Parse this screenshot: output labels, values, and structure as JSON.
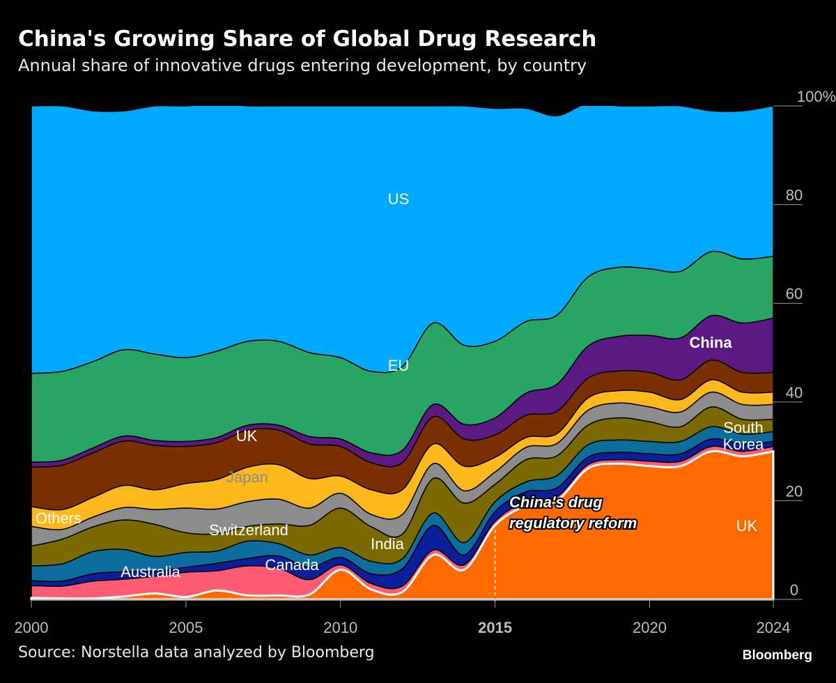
{
  "title": "China's Growing Share of Global Drug Research",
  "subtitle": "Annual share of innovative drugs entering development, by country",
  "source": "Source: Norstella data analyzed by Bloomberg",
  "brand": "Bloomberg",
  "chart_data": {
    "type": "area",
    "stacked": true,
    "normalized": true,
    "x": [
      2000,
      2001,
      2002,
      2003,
      2004,
      2005,
      2006,
      2007,
      2008,
      2009,
      2010,
      2011,
      2012,
      2013,
      2014,
      2015,
      2016,
      2017,
      2018,
      2019,
      2020,
      2021,
      2022,
      2023,
      2024
    ],
    "xticks": [
      {
        "value": 2000,
        "label": "2000",
        "bold": false
      },
      {
        "value": 2005,
        "label": "2005",
        "bold": false
      },
      {
        "value": 2010,
        "label": "2010",
        "bold": false
      },
      {
        "value": 2015,
        "label": "2015",
        "bold": true
      },
      {
        "value": 2020,
        "label": "2020",
        "bold": false
      },
      {
        "value": 2024,
        "label": "2024",
        "bold": false
      }
    ],
    "ylim": [
      0,
      100
    ],
    "yticks": [
      {
        "value": 0,
        "label": "0"
      },
      {
        "value": 20,
        "label": "20"
      },
      {
        "value": 40,
        "label": "40"
      },
      {
        "value": 60,
        "label": "60"
      },
      {
        "value": 80,
        "label": "80"
      },
      {
        "value": 100,
        "label": "100%"
      }
    ],
    "grid": false,
    "series": [
      {
        "name": "China",
        "color": "#ff6a00",
        "values": [
          0.3,
          0.2,
          0.2,
          0.6,
          1.2,
          0.5,
          1.8,
          0.8,
          0.8,
          1.0,
          6.0,
          2.0,
          1.5,
          9.0,
          6.0,
          15.0,
          19.0,
          20.0,
          26.5,
          27.5,
          27.0,
          27.0,
          30.0,
          29.0,
          30.0
        ]
      },
      {
        "name": "Australia",
        "color": "#ff5b74",
        "values": [
          2.5,
          2.5,
          3.5,
          3.5,
          3.5,
          5.0,
          4.0,
          6.0,
          5.5,
          3.0,
          1.0,
          1.2,
          1.2,
          1.0,
          1.0,
          0.8,
          0.8,
          0.8,
          0.8,
          0.8,
          1.0,
          1.0,
          1.0,
          1.0,
          1.0
        ]
      },
      {
        "name": "India",
        "color": "#0b1e9c",
        "values": [
          1.0,
          1.0,
          1.5,
          1.5,
          1.0,
          1.0,
          1.5,
          1.5,
          2.5,
          2.5,
          1.5,
          2.0,
          3.5,
          5.0,
          2.0,
          2.0,
          2.0,
          1.8,
          1.5,
          1.5,
          1.5,
          1.5,
          1.5,
          1.5,
          1.0
        ]
      },
      {
        "name": "Canada",
        "color": "#0d6e9e",
        "values": [
          3.0,
          3.5,
          4.5,
          4.5,
          3.0,
          3.0,
          2.5,
          3.5,
          2.5,
          2.5,
          2.0,
          2.5,
          2.0,
          2.5,
          2.5,
          2.0,
          2.0,
          2.5,
          2.5,
          2.5,
          2.5,
          2.5,
          2.5,
          2.0,
          2.0
        ]
      },
      {
        "name": "Switzerland",
        "color": "#7a6a00",
        "values": [
          4.0,
          5.0,
          5.0,
          6.0,
          6.5,
          4.0,
          3.5,
          3.0,
          4.0,
          6.0,
          8.0,
          7.0,
          5.0,
          7.0,
          8.0,
          3.5,
          4.5,
          4.0,
          4.0,
          4.5,
          4.0,
          3.0,
          4.0,
          3.0,
          2.5
        ]
      },
      {
        "name": "Others",
        "color": "#8c8c8c",
        "values": [
          4.0,
          2.0,
          2.0,
          2.5,
          3.0,
          5.0,
          5.0,
          5.0,
          5.0,
          3.5,
          3.0,
          2.5,
          4.0,
          3.0,
          2.5,
          2.5,
          2.5,
          2.5,
          3.0,
          3.0,
          3.0,
          3.0,
          3.0,
          3.0,
          3.0
        ]
      },
      {
        "name": "Japan",
        "color": "#ffb81c",
        "values": [
          4.0,
          4.0,
          4.0,
          4.5,
          4.0,
          5.0,
          6.0,
          7.0,
          7.0,
          6.0,
          3.5,
          5.0,
          5.0,
          4.0,
          5.0,
          3.0,
          2.0,
          2.0,
          2.5,
          2.5,
          3.0,
          2.5,
          2.5,
          2.5,
          2.5
        ]
      },
      {
        "name": "UK",
        "color": "#7a3000",
        "values": [
          8.0,
          9.0,
          9.0,
          9.0,
          9.0,
          7.5,
          7.5,
          7.5,
          7.0,
          7.0,
          6.0,
          5.5,
          5.5,
          5.5,
          5.5,
          4.5,
          4.5,
          4.5,
          4.0,
          4.0,
          4.0,
          4.0,
          4.0,
          4.0,
          4.0
        ]
      },
      {
        "name": "South Korea",
        "color": "#5a1a82",
        "values": [
          1.0,
          1.0,
          1.0,
          1.0,
          1.0,
          1.0,
          1.0,
          1.0,
          1.0,
          1.5,
          1.5,
          2.0,
          2.5,
          2.5,
          3.0,
          3.5,
          4.5,
          5.5,
          6.5,
          7.0,
          7.5,
          8.5,
          9.0,
          10.0,
          11.0
        ]
      },
      {
        "name": "EU",
        "color": "#28a464",
        "values": [
          18.0,
          18.0,
          17.5,
          17.5,
          17.5,
          17.0,
          17.5,
          17.0,
          17.0,
          17.0,
          16.5,
          16.5,
          17.0,
          16.5,
          16.0,
          15.5,
          14.5,
          14.0,
          14.0,
          14.0,
          13.5,
          13.5,
          13.0,
          13.0,
          12.5
        ]
      },
      {
        "name": "US",
        "color": "#00aaff",
        "values": [
          54.2,
          53.8,
          50.8,
          48.4,
          50.3,
          51.0,
          50.2,
          47.7,
          47.7,
          50.0,
          51.0,
          53.8,
          52.8,
          44.0,
          48.5,
          47.2,
          43.2,
          40.4,
          35.2,
          32.7,
          33.0,
          33.5,
          28.5,
          30.0,
          30.5
        ]
      }
    ],
    "series_labels": [
      {
        "text": "US",
        "color": "#ffffff",
        "bold": false
      },
      {
        "text": "EU",
        "color": "#ffffff",
        "bold": false
      },
      {
        "text": "China",
        "color": "#ffffff",
        "bold": true
      },
      {
        "text": "UK",
        "color": "#ffffff",
        "bold": false
      },
      {
        "text": "Japan",
        "color": "#8a8a8a",
        "bold": false
      },
      {
        "text": "Others",
        "color": "#ffffff",
        "bold": false
      },
      {
        "text": "Switzerland",
        "color": "#ffffff",
        "bold": false
      },
      {
        "text": "India",
        "color": "#ffffff",
        "bold": false
      },
      {
        "text": "Canada",
        "color": "#ffffff",
        "bold": false
      },
      {
        "text": "Australia",
        "color": "#ffffff",
        "bold": false
      },
      {
        "text": "South",
        "color": "#ffffff",
        "bold": false
      },
      {
        "text": "Korea",
        "color": "#ffffff",
        "bold": false
      },
      {
        "text": "UK",
        "color": "#ffffff",
        "bold": false
      }
    ],
    "annotation": {
      "x": 2015,
      "lines": [
        "China's drug",
        "regulatory reform"
      ]
    }
  }
}
